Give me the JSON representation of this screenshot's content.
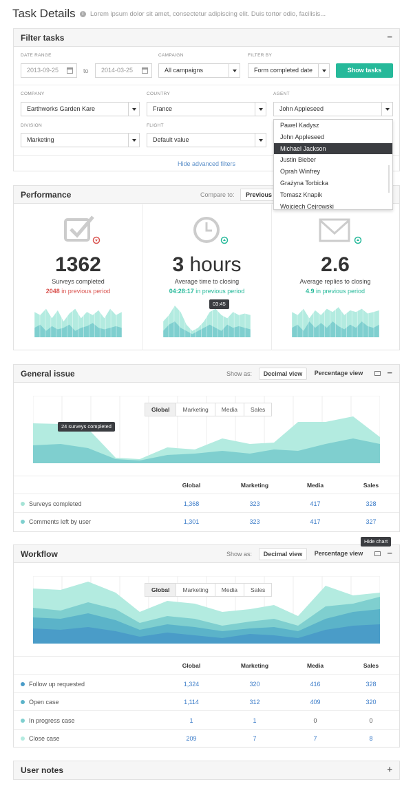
{
  "page": {
    "title": "Task Details",
    "subtitle": "Lorem ipsum dolor sit amet, consectetur adipiscing elit. Duis tortor odio, facilisis..."
  },
  "filter": {
    "title": "Filter tasks",
    "collapse": "−",
    "date_range_label": "DATE RANGE",
    "date_from": "2013-09-25",
    "date_to_word": "to",
    "date_to": "2014-03-25",
    "campaign_label": "CAMPAIGN",
    "campaign_value": "All campaigns",
    "filter_by_label": "FILTER BY",
    "filter_by_value": "Form completed date",
    "show_button": "Show tasks",
    "company_label": "COMPANY",
    "company_value": "Earthworks Garden Kare",
    "country_label": "COUNTRY",
    "country_value": "France",
    "agent_label": "AGENT",
    "agent_value": "John Appleseed",
    "division_label": "DIVISION",
    "division_value": "Marketing",
    "flight_label": "FLIGHT",
    "flight_value": "Default value",
    "advanced_link": "Hide advanced filters",
    "agent_options": [
      "Pawel Kadysz",
      "John Appleseed",
      "Michael Jackson",
      "Justin Bieber",
      "Oprah Winfrey",
      "Grażyna Torbicka",
      "Tomasz Knapik",
      "Wojciech Cejrowski"
    ],
    "agent_selected": "Michael Jackson"
  },
  "performance": {
    "title": "Performance",
    "compare_label": "Compare to:",
    "compare_value": "Previous p",
    "kpis": [
      {
        "value": "1362",
        "caption": "Surveys completed",
        "prev_value": "2048",
        "prev_text": "in previous period",
        "trend": "down",
        "icon": "checkbox-icon"
      },
      {
        "value": "3 hours",
        "caption": "Average time to closing",
        "prev_value": "04:28:17",
        "prev_text": "in previous period",
        "trend": "up",
        "icon": "clock-icon"
      },
      {
        "value": "2.6",
        "caption": "Average replies to closing",
        "prev_value": "4.9",
        "prev_text": "in previous period",
        "trend": "up",
        "icon": "envelope-icon"
      }
    ],
    "sparkline_tooltip": "03:45"
  },
  "general": {
    "title": "General issue",
    "show_as": "Show as:",
    "decimal": "Decimal view",
    "percentage": "Percentage view",
    "segments": [
      "Global",
      "Marketing",
      "Media",
      "Sales"
    ],
    "tooltip": "24 surveys completed",
    "columns": [
      "Global",
      "Marketing",
      "Media",
      "Sales"
    ],
    "rows": [
      {
        "label": "Surveys completed",
        "values": [
          "1,368",
          "323",
          "417",
          "328"
        ],
        "color": "#a6e3d6"
      },
      {
        "label": "Comments left by user",
        "values": [
          "1,301",
          "323",
          "417",
          "327"
        ],
        "color": "#7fd0cf"
      }
    ]
  },
  "workflow": {
    "title": "Workflow",
    "show_as": "Show as:",
    "decimal": "Decimal view",
    "percentage": "Percentage view",
    "hide_chart_tip": "Hide chart",
    "segments": [
      "Global",
      "Marketing",
      "Media",
      "Sales"
    ],
    "columns": [
      "Global",
      "Marketing",
      "Media",
      "Sales"
    ],
    "rows": [
      {
        "label": "Follow up requested",
        "values": [
          "1,324",
          "320",
          "416",
          "328"
        ],
        "color": "#4a9cc8"
      },
      {
        "label": "Open case",
        "values": [
          "1,114",
          "312",
          "409",
          "320"
        ],
        "color": "#5bb3c9"
      },
      {
        "label": "In progress case",
        "values": [
          "1",
          "1",
          "0",
          "0"
        ],
        "color": "#7fcfcf"
      },
      {
        "label": "Close case",
        "values": [
          "209",
          "7",
          "7",
          "8"
        ],
        "color": "#b3ebe0"
      }
    ]
  },
  "notes": {
    "title": "User notes",
    "expand": "+"
  },
  "colors": {
    "accent": "#26b99a",
    "red": "#d9534f",
    "link": "#3a7bc8"
  }
}
